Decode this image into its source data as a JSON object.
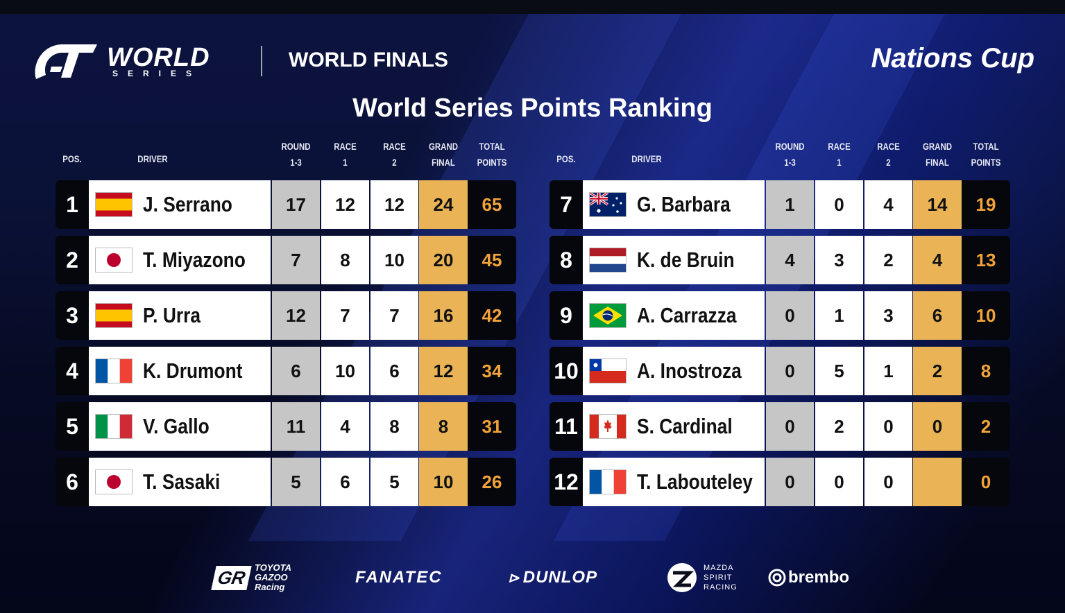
{
  "header": {
    "brand_line1": "WORLD",
    "brand_line2": "SERIES",
    "event": "WORLD FINALS",
    "cup": "Nations Cup"
  },
  "title": "World Series Points Ranking",
  "columns": {
    "pos": "POS.",
    "driver": "DRIVER",
    "round13_a": "ROUND",
    "round13_b": "1-3",
    "race1_a": "RACE",
    "race1_b": "1",
    "race2_a": "RACE",
    "race2_b": "2",
    "gf_a": "GRAND",
    "gf_b": "FINAL",
    "tot_a": "TOTAL",
    "tot_b": "POINTS"
  },
  "colors": {
    "round_cell": "#c6c6c6",
    "grand_final_cell": "#eab456",
    "total_text": "#f2a43a"
  },
  "left_rows": [
    {
      "pos": "1",
      "flag": "spain-flag-icon",
      "driver": "J. Serrano",
      "r13": "17",
      "r1": "12",
      "r2": "12",
      "gf": "24",
      "total": "65"
    },
    {
      "pos": "2",
      "flag": "japan-flag-icon",
      "driver": "T. Miyazono",
      "r13": "7",
      "r1": "8",
      "r2": "10",
      "gf": "20",
      "total": "45"
    },
    {
      "pos": "3",
      "flag": "spain-flag-icon",
      "driver": "P. Urra",
      "r13": "12",
      "r1": "7",
      "r2": "7",
      "gf": "16",
      "total": "42"
    },
    {
      "pos": "4",
      "flag": "france-flag-icon",
      "driver": "K. Drumont",
      "r13": "6",
      "r1": "10",
      "r2": "6",
      "gf": "12",
      "total": "34"
    },
    {
      "pos": "5",
      "flag": "italy-flag-icon",
      "driver": "V. Gallo",
      "r13": "11",
      "r1": "4",
      "r2": "8",
      "gf": "8",
      "total": "31"
    },
    {
      "pos": "6",
      "flag": "japan-flag-icon",
      "driver": "T. Sasaki",
      "r13": "5",
      "r1": "6",
      "r2": "5",
      "gf": "10",
      "total": "26"
    }
  ],
  "right_rows": [
    {
      "pos": "7",
      "flag": "australia-flag-icon",
      "driver": "G. Barbara",
      "r13": "1",
      "r1": "0",
      "r2": "4",
      "gf": "14",
      "total": "19"
    },
    {
      "pos": "8",
      "flag": "netherlands-flag-icon",
      "driver": "K. de Bruin",
      "r13": "4",
      "r1": "3",
      "r2": "2",
      "gf": "4",
      "total": "13"
    },
    {
      "pos": "9",
      "flag": "brazil-flag-icon",
      "driver": "A. Carrazza",
      "r13": "0",
      "r1": "1",
      "r2": "3",
      "gf": "6",
      "total": "10"
    },
    {
      "pos": "10",
      "flag": "chile-flag-icon",
      "driver": "A. Inostroza",
      "r13": "0",
      "r1": "5",
      "r2": "1",
      "gf": "2",
      "total": "8"
    },
    {
      "pos": "11",
      "flag": "canada-flag-icon",
      "driver": "S. Cardinal",
      "r13": "0",
      "r1": "2",
      "r2": "0",
      "gf": "0",
      "total": "2"
    },
    {
      "pos": "12",
      "flag": "france-flag-icon",
      "driver": "T. Labouteley",
      "r13": "0",
      "r1": "0",
      "r2": "0",
      "gf": "",
      "total": "0"
    }
  ],
  "sponsors": {
    "toyota_a": "TOYOTA",
    "toyota_b": "GAZOO",
    "toyota_c": "Racing",
    "toyota_gr": "GR",
    "fanatec": "FANATEC",
    "dunlop": "DUNLOP",
    "mazda_a": "MAZDA",
    "mazda_b": "SPIRIT",
    "mazda_c": "RACING",
    "brembo": "brembo"
  }
}
